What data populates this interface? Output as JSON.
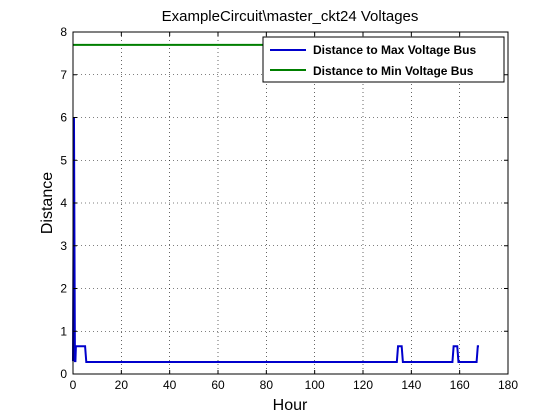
{
  "chart_data": {
    "type": "line",
    "title": "ExampleCircuit\\master_ckt24 Voltages",
    "xlabel": "Hour",
    "ylabel": "Distance",
    "xlim": [
      0,
      180
    ],
    "ylim": [
      0,
      8
    ],
    "xticks": [
      0,
      20,
      40,
      60,
      80,
      100,
      120,
      140,
      160,
      180
    ],
    "yticks": [
      0,
      1,
      2,
      3,
      4,
      5,
      6,
      7,
      8
    ],
    "grid": true,
    "legend_position": "top-right",
    "series": [
      {
        "name": "Distance to Max Voltage Bus",
        "color": "#0000cc",
        "x": [
          0,
          0.4,
          0.8,
          1,
          1.2,
          1.5,
          4.5,
          5,
          5.5,
          134,
          134.5,
          136,
          136.5,
          157,
          157.5,
          159,
          159.5,
          167,
          167.5,
          168
        ],
        "y": [
          0.3,
          6.0,
          0.3,
          0.3,
          0.65,
          0.65,
          0.65,
          0.65,
          0.28,
          0.28,
          0.65,
          0.65,
          0.28,
          0.28,
          0.65,
          0.65,
          0.28,
          0.28,
          0.65,
          0.65
        ]
      },
      {
        "name": "Distance to Min Voltage Bus",
        "color": "#007f00",
        "x": [
          0,
          168
        ],
        "y": [
          7.7,
          7.7
        ]
      }
    ]
  }
}
